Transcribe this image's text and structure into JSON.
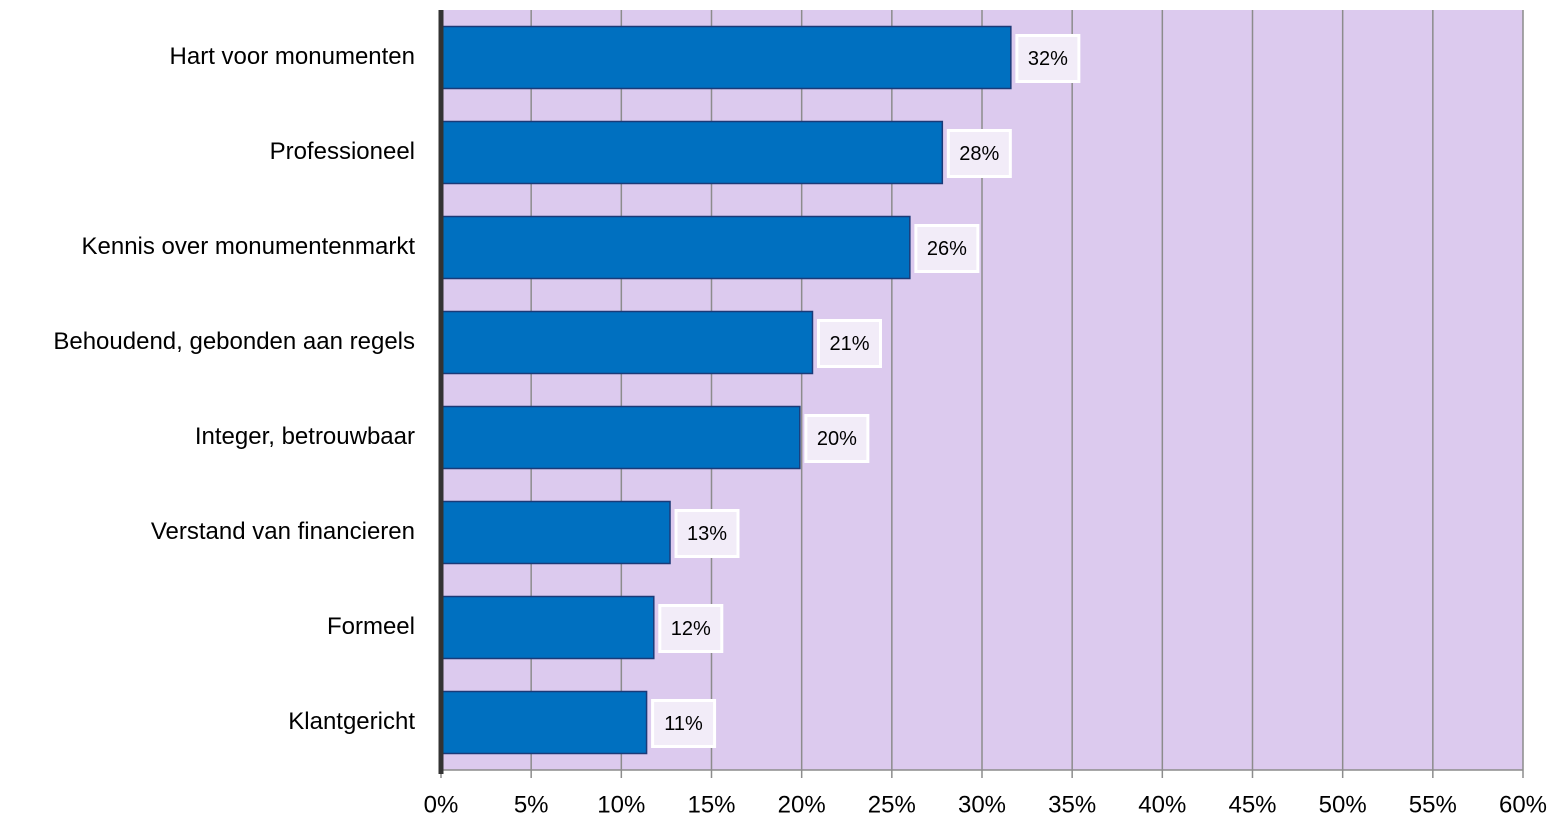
{
  "chart_data": {
    "type": "bar",
    "orientation": "horizontal",
    "categories": [
      "Hart voor monumenten",
      "Professioneel",
      "Kennis over monumentenmarkt",
      "Behoudend, gebonden aan regels",
      "Integer, betrouwbaar",
      "Verstand van financieren",
      "Formeel",
      "Klantgericht"
    ],
    "values": [
      31.6,
      27.8,
      26.0,
      20.6,
      19.9,
      12.7,
      11.8,
      11.4
    ],
    "value_labels": [
      "32%",
      "28%",
      "26%",
      "21%",
      "20%",
      "13%",
      "12%",
      "11%"
    ],
    "color": "#0070c0",
    "xlim": [
      0,
      60
    ],
    "xticks": [
      {
        "value": 0,
        "label": "0%"
      },
      {
        "value": 5,
        "label": "5%"
      },
      {
        "value": 10,
        "label": "10%"
      },
      {
        "value": 15,
        "label": "15%"
      },
      {
        "value": 20,
        "label": "20%"
      },
      {
        "value": 25,
        "label": "25%"
      },
      {
        "value": 30,
        "label": "30%"
      },
      {
        "value": 35,
        "label": "35%"
      },
      {
        "value": 40,
        "label": "40%"
      },
      {
        "value": 45,
        "label": "45%"
      },
      {
        "value": 50,
        "label": "50%"
      },
      {
        "value": 55,
        "label": "55%"
      },
      {
        "value": 60,
        "label": "60%"
      }
    ],
    "grid": true
  }
}
